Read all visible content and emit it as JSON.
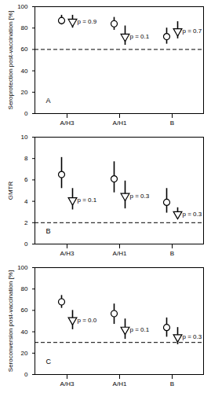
{
  "chart_data": [
    {
      "type": "scatter",
      "title": "A",
      "ylabel": "Seroprotection post-vaccination [%]",
      "categories": [
        "A/H3",
        "A/H1",
        "B"
      ],
      "ylim": [
        0,
        100
      ],
      "yticks": [
        0,
        20,
        40,
        60,
        80,
        100
      ],
      "threshold": 60,
      "series": [
        {
          "marker": "circle",
          "color": "#000000",
          "values": [
            87,
            84,
            72
          ],
          "error_low": [
            83,
            78,
            65
          ],
          "error_high": [
            92,
            90,
            80
          ]
        },
        {
          "marker": "triangle-down",
          "color": "#000000",
          "values": [
            86,
            72,
            77
          ],
          "error_low": [
            80,
            64,
            70
          ],
          "error_high": [
            92,
            82,
            86
          ],
          "annotations": [
            "p = 0.9",
            "p = 0.1",
            "p = 0.7"
          ]
        }
      ]
    },
    {
      "type": "scatter",
      "title": "B",
      "ylabel": "GMTR",
      "categories": [
        "A/H3",
        "A/H1",
        "B"
      ],
      "ylim": [
        0,
        10
      ],
      "yticks": [
        0,
        2,
        4,
        6,
        8,
        10
      ],
      "threshold": 2,
      "series": [
        {
          "marker": "circle",
          "color": "#000000",
          "values": [
            6.5,
            6.1,
            3.9
          ],
          "error_low": [
            5.2,
            4.8,
            2.9
          ],
          "error_high": [
            8.1,
            7.7,
            5.2
          ]
        },
        {
          "marker": "triangle-down",
          "color": "#000000",
          "values": [
            4.1,
            4.5,
            2.8
          ],
          "error_low": [
            3.2,
            3.3,
            2.4
          ],
          "error_high": [
            5.2,
            5.9,
            3.4
          ],
          "annotations": [
            "p = 0.1",
            "p = 0.3",
            "p = 0.3"
          ]
        }
      ]
    },
    {
      "type": "scatter",
      "title": "C",
      "ylabel": "Seroconversion post-vaccination [%]",
      "categories": [
        "A/H3",
        "A/H1",
        "B"
      ],
      "ylim": [
        0,
        100
      ],
      "yticks": [
        0,
        20,
        40,
        60,
        80,
        100
      ],
      "threshold": 30,
      "series": [
        {
          "marker": "circle",
          "color": "#000000",
          "values": [
            68,
            57,
            44
          ],
          "error_low": [
            62,
            47,
            35
          ],
          "error_high": [
            74,
            66,
            53
          ]
        },
        {
          "marker": "triangle-down",
          "color": "#000000",
          "values": [
            51,
            42,
            35
          ],
          "error_low": [
            42,
            33,
            28
          ],
          "error_high": [
            60,
            52,
            44
          ],
          "annotations": [
            "p = 0.0",
            "p = 0.1",
            "p = 0.3"
          ]
        }
      ]
    }
  ]
}
